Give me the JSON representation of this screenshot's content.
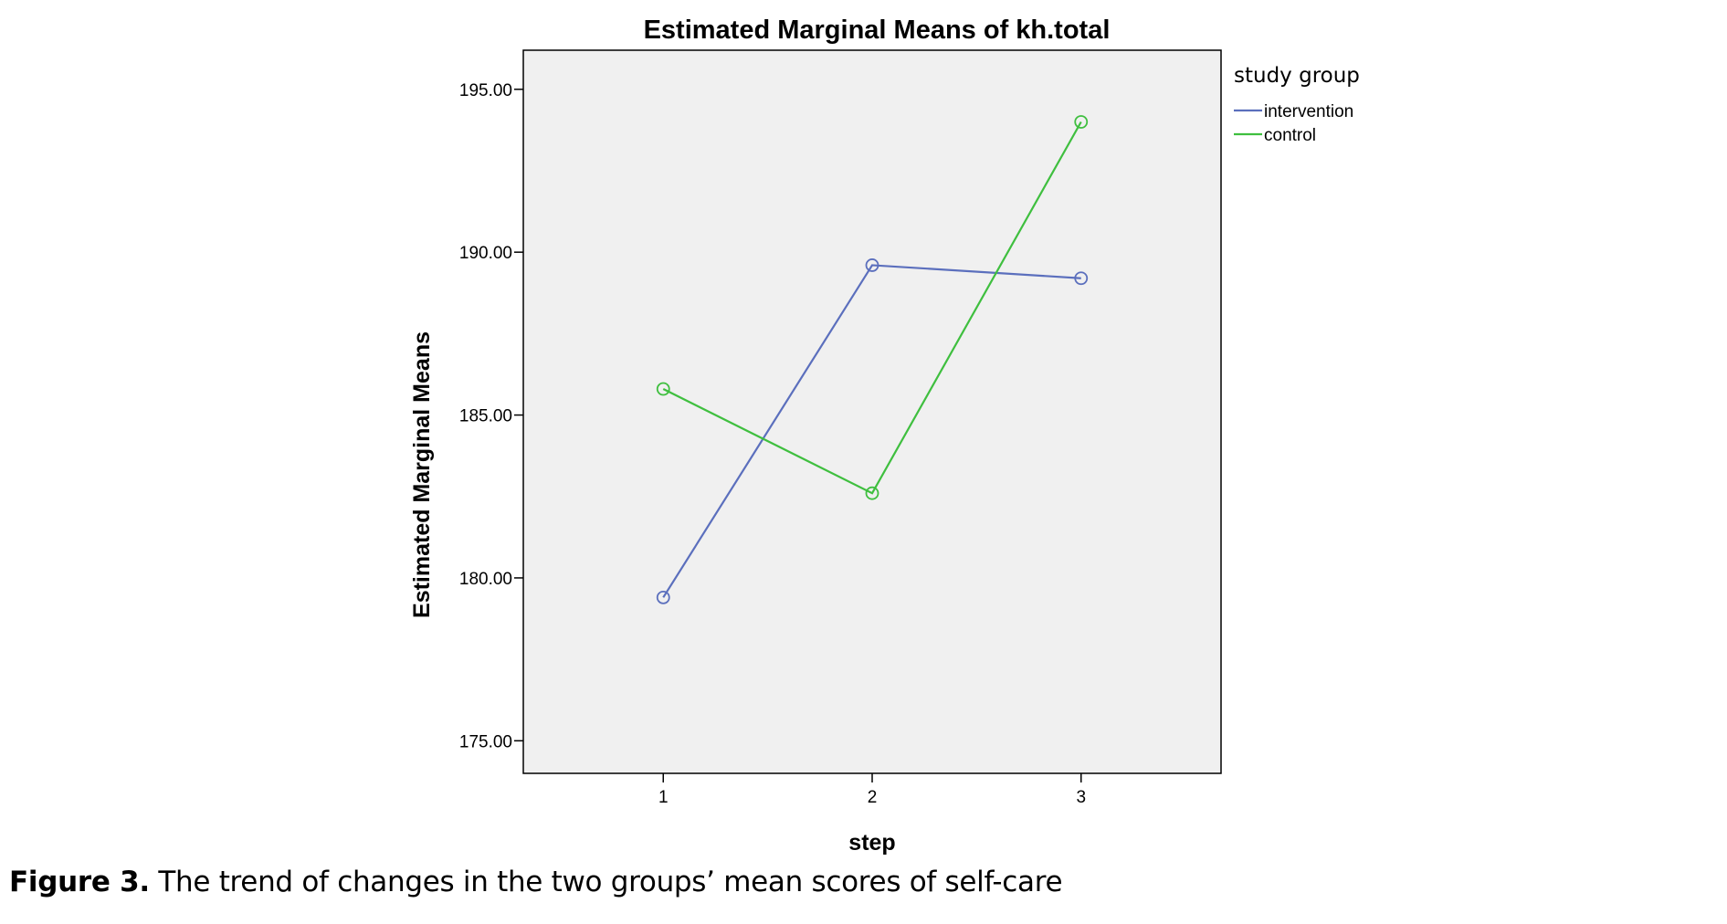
{
  "chart_data": {
    "type": "line",
    "title": "Estimated Marginal Means of kh.total",
    "xlabel": "step",
    "ylabel": "Estimated Marginal Means",
    "categories": [
      "1",
      "2",
      "3"
    ],
    "y_tick_labels": [
      "175.00",
      "180.00",
      "185.00",
      "190.00",
      "195.00"
    ],
    "ylim": [
      174,
      196.2
    ],
    "x_range": [
      0.33,
      3.67
    ],
    "grid": false,
    "legend": {
      "title": "study group",
      "placement": "right"
    },
    "series": [
      {
        "name": "intervention",
        "color": "#5b6fbd",
        "values": [
          179.4,
          189.6,
          189.2
        ]
      },
      {
        "name": "control",
        "color": "#3fbf3f",
        "values": [
          185.8,
          182.6,
          194.0
        ]
      }
    ],
    "plot_background": "#f0f0f0"
  },
  "caption": {
    "label": "Figure 3.",
    "text": " The trend of changes in the two groups’ mean scores of self-care"
  }
}
